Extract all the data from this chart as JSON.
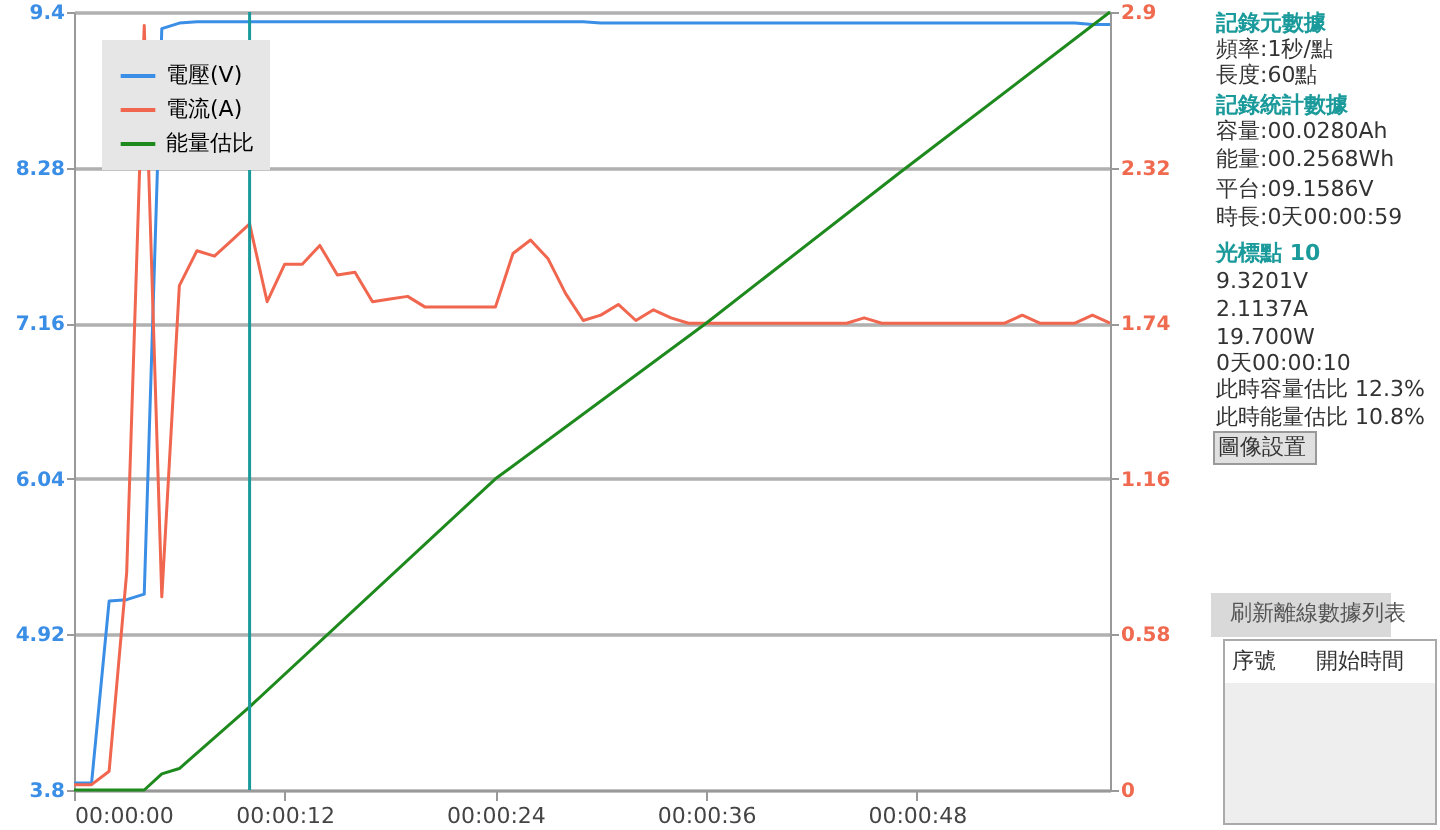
{
  "chart_data": {
    "type": "line",
    "x": [
      0,
      1,
      2,
      3,
      4,
      5,
      6,
      7,
      8,
      9,
      10,
      11,
      12,
      13,
      14,
      15,
      16,
      17,
      18,
      19,
      20,
      21,
      22,
      23,
      24,
      25,
      26,
      27,
      28,
      29,
      30,
      31,
      32,
      33,
      34,
      35,
      36,
      37,
      38,
      39,
      40,
      41,
      42,
      43,
      44,
      45,
      46,
      47,
      48,
      49,
      50,
      51,
      52,
      53,
      54,
      55,
      56,
      57,
      58,
      59
    ],
    "xlim": [
      0,
      59
    ],
    "xticks": [
      {
        "value": 0,
        "label": "00:00:00"
      },
      {
        "value": 12,
        "label": "00:00:12"
      },
      {
        "value": 24,
        "label": "00:00:24"
      },
      {
        "value": 36,
        "label": "00:00:36"
      },
      {
        "value": 48,
        "label": "00:00:48"
      }
    ],
    "ylim": [
      3.8,
      9.4
    ],
    "yticks": [
      3.8,
      4.92,
      6.04,
      7.16,
      8.28,
      9.4
    ],
    "y2lim": [
      0,
      2.9
    ],
    "y2ticks": [
      0,
      0.58,
      1.16,
      1.74,
      2.32,
      2.9
    ],
    "series": [
      {
        "name": "電壓(V)",
        "color": "#3a8ee6",
        "values": [
          3.85,
          3.85,
          5.16,
          5.17,
          5.21,
          9.28,
          9.32,
          9.33,
          9.33,
          9.33,
          9.33,
          9.33,
          9.33,
          9.33,
          9.33,
          9.33,
          9.33,
          9.33,
          9.33,
          9.33,
          9.33,
          9.33,
          9.33,
          9.33,
          9.33,
          9.33,
          9.33,
          9.33,
          9.33,
          9.33,
          9.32,
          9.32,
          9.32,
          9.32,
          9.32,
          9.32,
          9.32,
          9.32,
          9.32,
          9.32,
          9.32,
          9.32,
          9.32,
          9.32,
          9.32,
          9.32,
          9.32,
          9.32,
          9.32,
          9.32,
          9.32,
          9.32,
          9.32,
          9.32,
          9.32,
          9.32,
          9.32,
          9.32,
          9.31,
          9.31
        ]
      },
      {
        "name": "電流(A)",
        "color": "#f0664e",
        "axis": "y2",
        "values": [
          0.02,
          0.02,
          0.07,
          0.81,
          2.85,
          0.72,
          1.88,
          2.01,
          1.99,
          2.05,
          2.11,
          1.82,
          1.96,
          1.96,
          2.03,
          1.92,
          1.93,
          1.82,
          1.83,
          1.84,
          1.8,
          1.8,
          1.8,
          1.8,
          1.8,
          2.0,
          2.05,
          1.98,
          1.85,
          1.75,
          1.77,
          1.81,
          1.75,
          1.79,
          1.76,
          1.74,
          1.74,
          1.74,
          1.74,
          1.74,
          1.74,
          1.74,
          1.74,
          1.74,
          1.74,
          1.76,
          1.74,
          1.74,
          1.74,
          1.74,
          1.74,
          1.74,
          1.74,
          1.74,
          1.77,
          1.74,
          1.74,
          1.74,
          1.77,
          1.74
        ]
      },
      {
        "name": "能量估比",
        "color": "#1e8a1e",
        "axis": "y2",
        "x": [
          0,
          4,
          5,
          6,
          10,
          24,
          36,
          47,
          59
        ],
        "values": [
          0,
          0,
          0.06,
          0.08,
          0.31,
          1.16,
          1.74,
          2.3,
          2.9
        ]
      }
    ],
    "ref_lines": [
      {
        "axis": "x",
        "value": 10,
        "color": "#1a9a9a"
      }
    ],
    "grid": "y",
    "legend": "top left",
    "marker": "none",
    "line_style": "solid",
    "annotations": [
      "記錄元數據",
      "頻率:1秒/點",
      "長度:60點",
      "記錄統計數據",
      "容量:00.0280Ah",
      "能量:00.2568Wh",
      "平台:09.1586V",
      "時長:0天00:00:59",
      "光標點 10",
      "9.3201V",
      "2.1137A",
      "19.700W",
      "0天00:00:10",
      "此時容量估比 12.3%",
      "此時能量估比 10.8%",
      "圖像設置",
      "刷新離線數據列表",
      "序號",
      "開始時間"
    ]
  }
}
